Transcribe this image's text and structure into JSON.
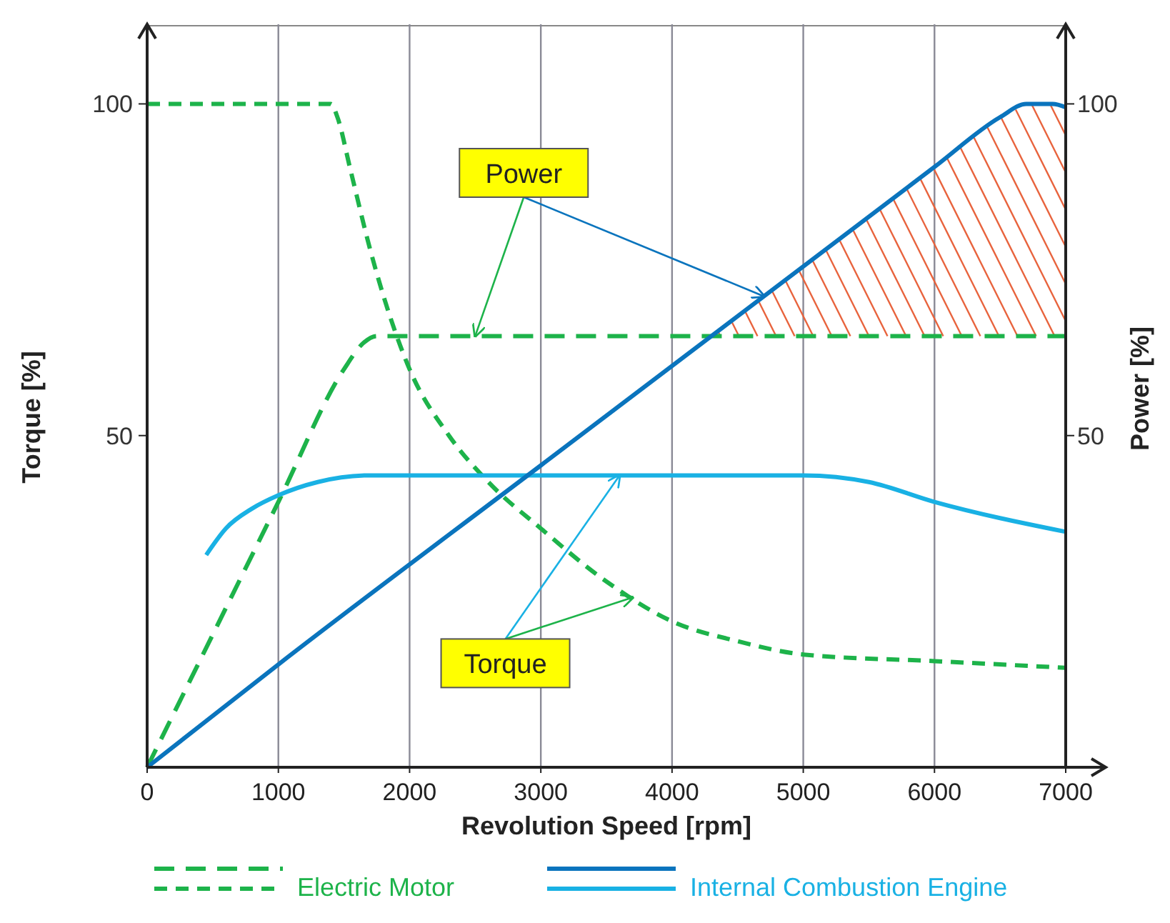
{
  "chart_data": {
    "type": "line",
    "xlabel": "Revolution Speed [rpm]",
    "ylabel": "Torque [%]",
    "y2label": "Power [%]",
    "xlim": [
      0,
      7000
    ],
    "xticks": [
      0,
      1000,
      2000,
      3000,
      4000,
      5000,
      6000,
      7000
    ],
    "ylim": [
      0,
      112
    ],
    "yticks": [
      50,
      100
    ],
    "y2lim": [
      0,
      112
    ],
    "y2ticks": [
      50,
      100
    ],
    "grid": "x",
    "legend": "bottom",
    "annotations": [
      {
        "text": "Power",
        "x": 2500,
        "y": 65
      },
      {
        "text": "Torque",
        "x": 3600,
        "y": 44
      }
    ],
    "series": [
      {
        "name": "Electric Motor",
        "color": "#1db34a",
        "line_style": "dashed",
        "x": [
          0,
          1400,
          1450,
          1550,
          1700,
          1850,
          2000,
          2300,
          2600,
          3000,
          3500,
          4000,
          4500,
          5000,
          6000,
          7000
        ],
        "values": [
          100,
          100,
          98,
          90,
          78,
          68,
          60,
          50,
          43,
          36,
          28,
          22,
          19,
          17,
          16,
          15
        ]
      },
      {
        "color": "#1db34a",
        "line_style": "dashed",
        "x": [
          0,
          1000,
          1500,
          1650,
          1750,
          7000
        ],
        "values": [
          0,
          40,
          60,
          64,
          65,
          65
        ]
      },
      {
        "name": "Internal Combustion Engine",
        "color": "#19b1e4",
        "line_style": "solid",
        "x": [
          450,
          600,
          800,
          1000,
          1300,
          1700,
          3000,
          5000,
          5500,
          6000,
          7000
        ],
        "values": [
          32,
          36,
          39,
          41,
          43,
          44,
          44,
          44,
          43,
          40,
          35.5
        ]
      },
      {
        "color": "#0a74bd",
        "line_style": "solid",
        "x": [
          0,
          1000,
          3000,
          6000,
          6500,
          6700,
          6900,
          7000
        ],
        "values": [
          0,
          15.5,
          45.5,
          90.5,
          98,
          100,
          100,
          99.5
        ]
      }
    ]
  }
}
